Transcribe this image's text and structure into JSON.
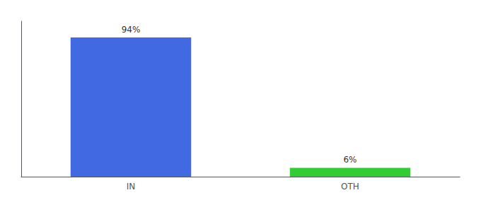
{
  "chart_data": {
    "type": "bar",
    "categories": [
      "IN",
      "OTH"
    ],
    "values": [
      94,
      6
    ],
    "value_labels": [
      "94%",
      "6%"
    ],
    "colors": [
      "#4169e1",
      "#33cc33"
    ],
    "ylim": [
      0,
      105
    ],
    "data_labels": true,
    "tick_labels": "x",
    "grid": false
  }
}
